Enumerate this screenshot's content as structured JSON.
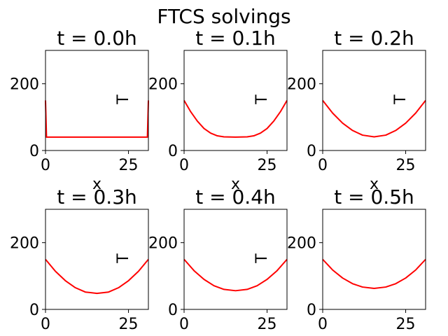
{
  "figure": {
    "suptitle": "FTCS solvings"
  },
  "chart_data": [
    {
      "type": "line",
      "title": "t = 0.0h",
      "xlabel": "x",
      "ylabel": "T",
      "xlim": [
        0,
        31
      ],
      "ylim": [
        0,
        300
      ],
      "xticks": [
        0,
        25
      ],
      "yticks": [
        0,
        200
      ],
      "grid": false,
      "series": [
        {
          "color": "#ff0000",
          "x": [
            0,
            0.3,
            0.7,
            1,
            30,
            30.3,
            30.7,
            31
          ],
          "y": [
            150,
            40,
            40,
            40,
            40,
            40,
            40,
            150
          ]
        }
      ]
    },
    {
      "type": "line",
      "title": "t = 0.1h",
      "xlabel": "x",
      "ylabel": "T",
      "xlim": [
        0,
        31
      ],
      "ylim": [
        0,
        300
      ],
      "xticks": [
        0,
        25
      ],
      "yticks": [
        0,
        200
      ],
      "grid": false,
      "series": [
        {
          "color": "#ff0000",
          "x": [
            0,
            2,
            4,
            6,
            8,
            10,
            12,
            15.5,
            19,
            21,
            23,
            25,
            27,
            29,
            31
          ],
          "y": [
            150,
            116,
            88,
            66,
            52,
            44,
            41,
            40,
            41,
            44,
            52,
            66,
            88,
            116,
            150
          ]
        }
      ]
    },
    {
      "type": "line",
      "title": "t = 0.2h",
      "xlabel": "x",
      "ylabel": "T",
      "xlim": [
        0,
        31
      ],
      "ylim": [
        0,
        300
      ],
      "xticks": [
        0,
        25
      ],
      "yticks": [
        0,
        200
      ],
      "grid": false,
      "series": [
        {
          "color": "#ff0000",
          "x": [
            0,
            3,
            6,
            9,
            12,
            15.5,
            19,
            22,
            25,
            28,
            31
          ],
          "y": [
            150,
            112,
            82,
            60,
            46,
            41,
            46,
            60,
            82,
            112,
            150
          ]
        }
      ]
    },
    {
      "type": "line",
      "title": "t = 0.3h",
      "xlabel": "",
      "ylabel": "T",
      "xlim": [
        0,
        31
      ],
      "ylim": [
        0,
        300
      ],
      "xticks": [
        0,
        25
      ],
      "yticks": [
        0,
        200
      ],
      "grid": false,
      "series": [
        {
          "color": "#ff0000",
          "x": [
            0,
            3,
            6,
            9,
            12,
            15.5,
            19,
            22,
            25,
            28,
            31
          ],
          "y": [
            150,
            114,
            86,
            65,
            52,
            48,
            52,
            65,
            86,
            114,
            150
          ]
        }
      ]
    },
    {
      "type": "line",
      "title": "t = 0.4h",
      "xlabel": "",
      "ylabel": "T",
      "xlim": [
        0,
        31
      ],
      "ylim": [
        0,
        300
      ],
      "xticks": [
        0,
        25
      ],
      "yticks": [
        0,
        200
      ],
      "grid": false,
      "series": [
        {
          "color": "#ff0000",
          "x": [
            0,
            3,
            6,
            9,
            12,
            15.5,
            19,
            22,
            25,
            28,
            31
          ],
          "y": [
            150,
            116,
            90,
            71,
            60,
            56,
            60,
            71,
            90,
            116,
            150
          ]
        }
      ]
    },
    {
      "type": "line",
      "title": "t = 0.5h",
      "xlabel": "",
      "ylabel": "",
      "xlim": [
        0,
        31
      ],
      "ylim": [
        0,
        300
      ],
      "xticks": [
        0,
        25
      ],
      "yticks": [
        0,
        200
      ],
      "grid": false,
      "series": [
        {
          "color": "#ff0000",
          "x": [
            0,
            3,
            6,
            9,
            12,
            15.5,
            19,
            22,
            25,
            28,
            31
          ],
          "y": [
            150,
            118,
            94,
            77,
            67,
            63,
            67,
            77,
            94,
            118,
            150
          ]
        }
      ]
    }
  ]
}
